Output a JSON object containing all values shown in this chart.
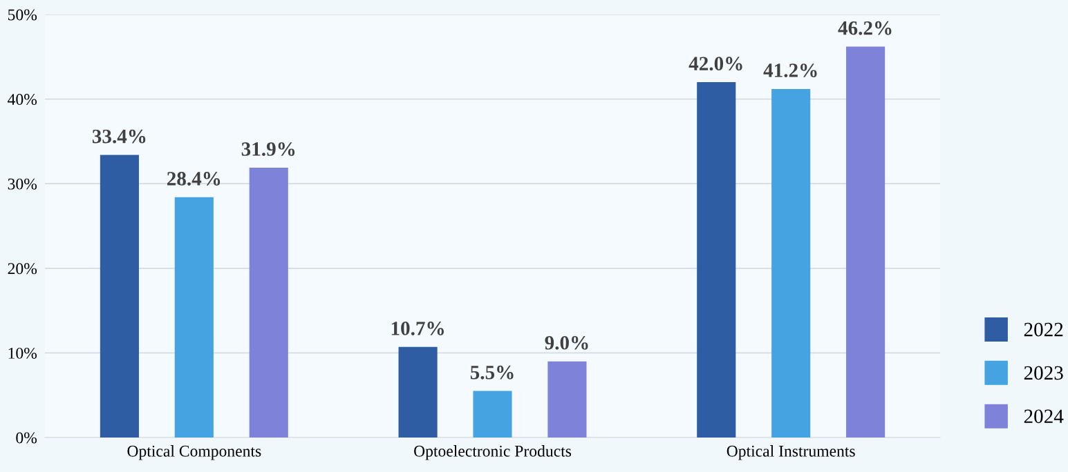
{
  "chart_data": {
    "type": "bar",
    "categories": [
      "Optical Components",
      "Optoelectronic Products",
      "Optical Instruments"
    ],
    "series": [
      {
        "name": "2022",
        "color": "#2f5da3",
        "values": [
          33.4,
          10.7,
          42.0
        ]
      },
      {
        "name": "2023",
        "color": "#45a3e2",
        "values": [
          28.4,
          5.5,
          41.2
        ]
      },
      {
        "name": "2024",
        "color": "#7e82d8",
        "values": [
          31.9,
          9.0,
          46.2
        ]
      }
    ],
    "value_labels": [
      [
        "33.4%",
        "10.7%",
        "42.0%"
      ],
      [
        "28.4%",
        "5.5%",
        "41.2%"
      ],
      [
        "31.9%",
        "9.0%",
        "46.2%"
      ]
    ],
    "ylim": [
      0,
      50
    ],
    "yticks": [
      {
        "value": 0,
        "label": "0%"
      },
      {
        "value": 10,
        "label": "10%"
      },
      {
        "value": 20,
        "label": "20%"
      },
      {
        "value": 30,
        "label": "30%"
      },
      {
        "value": 40,
        "label": "40%"
      },
      {
        "value": 50,
        "label": "50%"
      }
    ],
    "grid": "y",
    "legend": "bottom right"
  }
}
